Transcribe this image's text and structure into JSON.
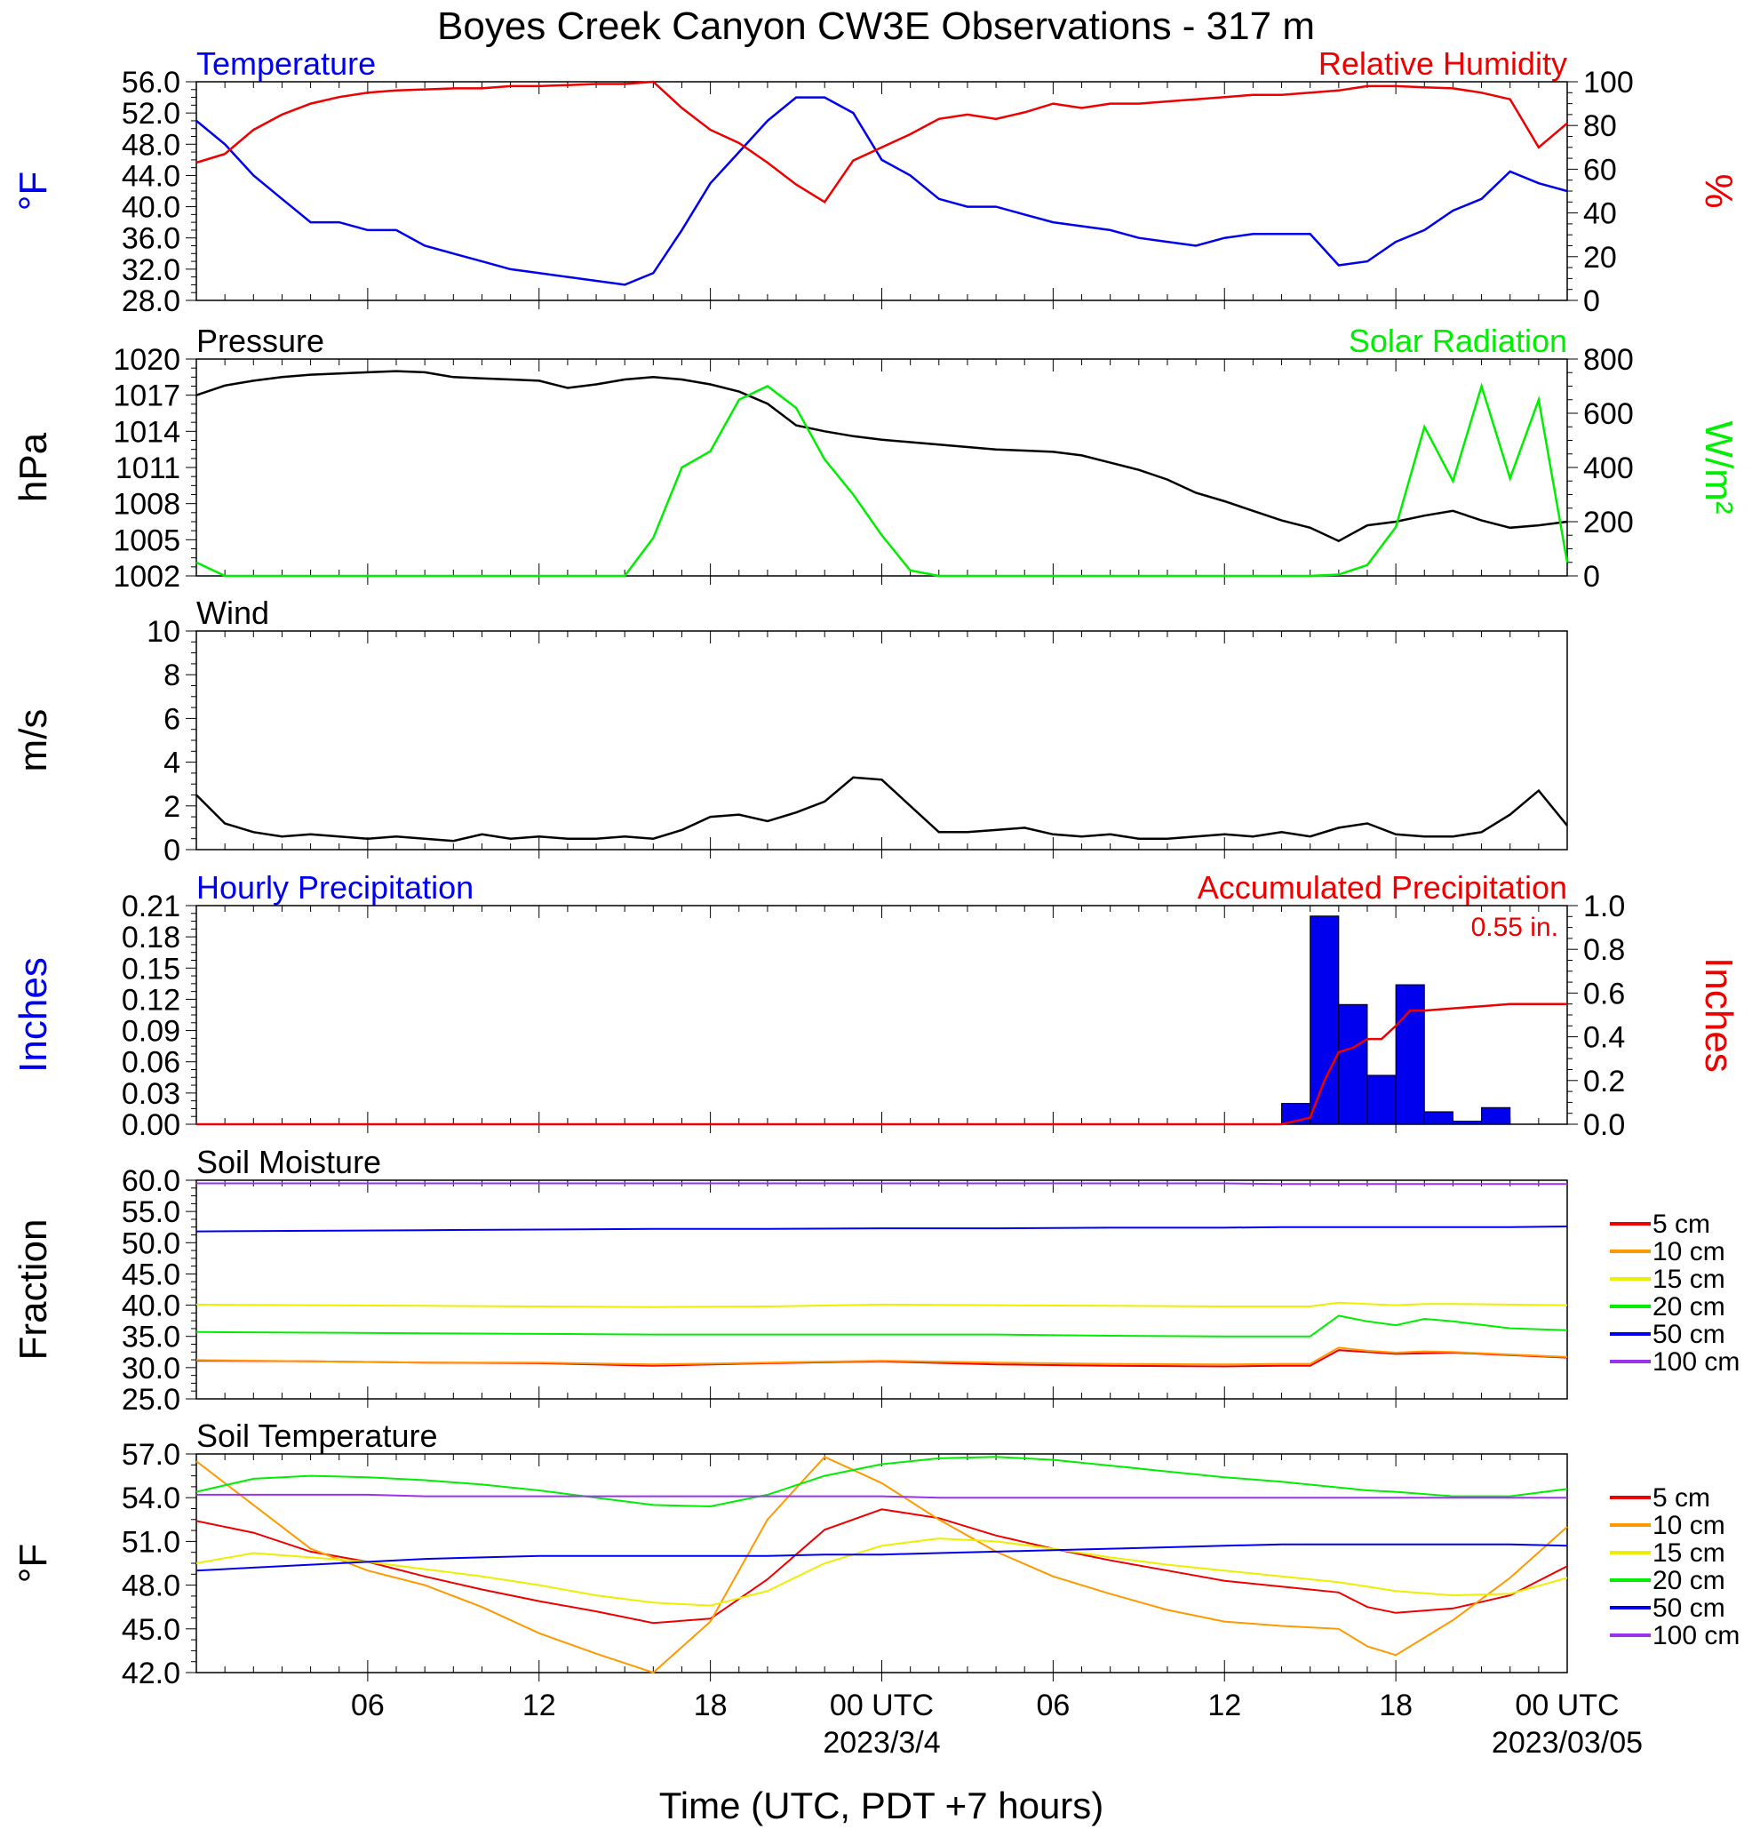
{
  "page": {
    "title": "Boyes Creek Canyon CW3E Observations - 317 m",
    "xlabel": "Time (UTC, PDT +7 hours)"
  },
  "colors": {
    "blue": "#0000ee",
    "red": "#ee0000",
    "green": "#00ee00",
    "black": "#000000",
    "orange": "#ff9900",
    "yellow": "#eeee00",
    "purple": "#9933ee"
  },
  "time_axis": {
    "tick_labels": [
      "06",
      "12",
      "18",
      "00 UTC",
      "06",
      "12",
      "18",
      "00 UTC"
    ],
    "date_labels": [
      "2023/3/4",
      "2023/03/05"
    ]
  },
  "soil_legend": [
    "5 cm",
    "10 cm",
    "15 cm",
    "20 cm",
    "50 cm",
    "100 cm"
  ],
  "chart_data": [
    {
      "panel": "temperature_rh",
      "type": "line",
      "title_left": "Temperature",
      "title_right": "Relative Humidity",
      "ylabel_left": "°F",
      "ylabel_right": "%",
      "ylim_left": [
        28,
        56
      ],
      "ylim_right": [
        0,
        100
      ],
      "yticks_left": [
        "56.0",
        "52.0",
        "48.0",
        "44.0",
        "40.0",
        "36.0",
        "32.0",
        "28.0"
      ],
      "yticks_right": [
        "100",
        "80",
        "60",
        "40",
        "20",
        "0"
      ],
      "x_hours": [
        0,
        1,
        2,
        3,
        4,
        5,
        6,
        7,
        8,
        9,
        10,
        11,
        12,
        13,
        14,
        15,
        16,
        17,
        18,
        19,
        20,
        21,
        22,
        23,
        24,
        25,
        26,
        27,
        28,
        29,
        30,
        31,
        32,
        33,
        34,
        35,
        36,
        37,
        38,
        39,
        40,
        41,
        42,
        43,
        44,
        45,
        46,
        47,
        48
      ],
      "series": [
        {
          "name": "Temperature",
          "axis": "left",
          "color": "blue",
          "values": [
            51,
            48,
            44,
            41,
            38,
            38,
            37,
            37,
            35,
            34,
            33,
            32,
            31.5,
            31,
            30.5,
            30,
            31.5,
            37,
            43,
            47,
            51,
            54,
            54,
            52,
            46,
            44,
            41,
            40,
            40,
            39,
            38,
            37.5,
            37,
            36,
            35.5,
            35,
            36,
            36.5,
            36.5,
            36.5,
            32.5,
            33,
            35.5,
            37,
            39.5,
            41,
            44.5,
            43,
            42
          ]
        },
        {
          "name": "Relative Humidity",
          "axis": "right",
          "color": "red",
          "values": [
            63,
            67,
            78,
            85,
            90,
            93,
            95,
            96,
            96.5,
            97,
            97,
            98,
            98,
            98.5,
            99,
            99,
            100,
            88,
            78,
            72,
            63,
            53,
            45,
            64,
            70,
            76,
            83,
            85,
            83,
            86,
            90,
            88,
            90,
            90,
            91,
            92,
            93,
            94,
            94,
            95,
            96,
            98,
            98,
            97.5,
            97,
            95,
            92,
            70,
            81
          ]
        }
      ]
    },
    {
      "panel": "pressure_solar",
      "type": "line",
      "title_left": "Pressure",
      "title_right": "Solar Radiation",
      "ylabel_left": "hPa",
      "ylabel_right": "W/m²",
      "ylim_left": [
        1002,
        1020
      ],
      "ylim_right": [
        0,
        800
      ],
      "yticks_left": [
        "1020",
        "1017",
        "1014",
        "1011",
        "1008",
        "1005",
        "1002"
      ],
      "yticks_right": [
        "800",
        "600",
        "400",
        "200",
        "0"
      ],
      "x_hours": [
        0,
        1,
        2,
        3,
        4,
        5,
        6,
        7,
        8,
        9,
        10,
        11,
        12,
        13,
        14,
        15,
        16,
        17,
        18,
        19,
        20,
        21,
        22,
        23,
        24,
        25,
        26,
        27,
        28,
        29,
        30,
        31,
        32,
        33,
        34,
        35,
        36,
        37,
        38,
        39,
        40,
        41,
        42,
        43,
        44,
        45,
        46,
        47,
        48
      ],
      "series": [
        {
          "name": "Pressure",
          "axis": "left",
          "color": "black",
          "values": [
            1017,
            1017.8,
            1018.2,
            1018.5,
            1018.7,
            1018.8,
            1018.9,
            1019,
            1018.9,
            1018.5,
            1018.4,
            1018.3,
            1018.2,
            1017.6,
            1017.9,
            1018.3,
            1018.5,
            1018.3,
            1017.9,
            1017.3,
            1016.3,
            1014.5,
            1014,
            1013.6,
            1013.3,
            1013.1,
            1012.9,
            1012.7,
            1012.5,
            1012.4,
            1012.3,
            1012,
            1011.4,
            1010.8,
            1010,
            1008.9,
            1008.2,
            1007.4,
            1006.6,
            1006,
            1004.9,
            1006.2,
            1006.5,
            1007,
            1007.4,
            1006.6,
            1006,
            1006.2,
            1006.5
          ]
        },
        {
          "name": "Solar Radiation",
          "axis": "right",
          "color": "green",
          "values": [
            50,
            0,
            0,
            0,
            0,
            0,
            0,
            0,
            0,
            0,
            0,
            0,
            0,
            0,
            0,
            0,
            140,
            400,
            460,
            650,
            700,
            620,
            430,
            300,
            150,
            20,
            0,
            0,
            0,
            0,
            0,
            0,
            0,
            0,
            0,
            0,
            0,
            0,
            0,
            0,
            5,
            40,
            180,
            550,
            350,
            700,
            360,
            650,
            50
          ]
        }
      ]
    },
    {
      "panel": "wind",
      "type": "line",
      "title_left": "Wind",
      "ylabel_left": "m/s",
      "ylim_left": [
        0,
        10
      ],
      "yticks_left": [
        "10",
        "8",
        "6",
        "4",
        "2",
        "0"
      ],
      "x_hours": [
        0,
        1,
        2,
        3,
        4,
        5,
        6,
        7,
        8,
        9,
        10,
        11,
        12,
        13,
        14,
        15,
        16,
        17,
        18,
        19,
        20,
        21,
        22,
        23,
        24,
        25,
        26,
        27,
        28,
        29,
        30,
        31,
        32,
        33,
        34,
        35,
        36,
        37,
        38,
        39,
        40,
        41,
        42,
        43,
        44,
        45,
        46,
        47,
        48
      ],
      "series": [
        {
          "name": "Wind speed",
          "axis": "left",
          "color": "black",
          "values": [
            2.5,
            1.2,
            0.8,
            0.6,
            0.7,
            0.6,
            0.5,
            0.6,
            0.5,
            0.4,
            0.7,
            0.5,
            0.6,
            0.5,
            0.5,
            0.6,
            0.5,
            0.9,
            1.5,
            1.6,
            1.3,
            1.7,
            2.2,
            3.3,
            3.2,
            2.0,
            0.8,
            0.8,
            0.9,
            1.0,
            0.7,
            0.6,
            0.7,
            0.5,
            0.5,
            0.6,
            0.7,
            0.6,
            0.8,
            0.6,
            1.0,
            1.2,
            0.7,
            0.6,
            0.6,
            0.8,
            1.6,
            2.7,
            1.1
          ]
        }
      ]
    },
    {
      "panel": "precipitation",
      "type": "bar",
      "title_left": "Hourly Precipitation",
      "title_right": "Accumulated Precipitation",
      "annotation": "0.55 in.",
      "ylabel_left": "Inches",
      "ylabel_right": "Inches",
      "ylim_left": [
        0,
        0.21
      ],
      "ylim_right": [
        0,
        1.0
      ],
      "yticks_left": [
        "0.21",
        "0.18",
        "0.15",
        "0.12",
        "0.09",
        "0.06",
        "0.03",
        "0.00"
      ],
      "yticks_right": [
        "1.0",
        "0.8",
        "0.6",
        "0.4",
        "0.2",
        "0.0"
      ],
      "bar_hours": [
        38,
        39,
        40,
        41,
        42,
        43,
        44,
        45
      ],
      "bar_values": [
        0.02,
        0.2,
        0.115,
        0.047,
        0.134,
        0.012,
        0.003,
        0.016
      ],
      "accumulated_x": [
        0,
        38,
        39,
        39.5,
        40,
        40.5,
        41,
        41.5,
        42,
        42.5,
        43,
        44,
        45,
        46,
        48
      ],
      "accumulated": [
        0,
        0,
        0.03,
        0.2,
        0.33,
        0.35,
        0.39,
        0.39,
        0.45,
        0.52,
        0.52,
        0.53,
        0.54,
        0.55,
        0.55
      ]
    },
    {
      "panel": "soil_moisture",
      "type": "line",
      "title_left": "Soil Moisture",
      "ylabel_left": "Fraction",
      "ylim_left": [
        25,
        60
      ],
      "yticks_left": [
        "60.0",
        "55.0",
        "50.0",
        "45.0",
        "40.0",
        "35.0",
        "30.0",
        "25.0"
      ],
      "x_hours": [
        0,
        4,
        8,
        12,
        16,
        20,
        24,
        28,
        32,
        36,
        38,
        39,
        40,
        41,
        42,
        43,
        44,
        46,
        48
      ],
      "series": [
        {
          "name": "5 cm",
          "color": "red",
          "values": [
            31.1,
            31.0,
            30.8,
            30.7,
            30.3,
            30.7,
            31.0,
            30.5,
            30.3,
            30.2,
            30.3,
            30.3,
            32.8,
            32.5,
            32.2,
            32.3,
            32.4,
            32.0,
            31.6
          ]
        },
        {
          "name": "10 cm",
          "color": "orange",
          "values": [
            31.2,
            31.0,
            30.8,
            30.8,
            30.5,
            30.8,
            31.1,
            30.8,
            30.6,
            30.5,
            30.6,
            30.6,
            33.2,
            32.7,
            32.4,
            32.6,
            32.5,
            32.1,
            31.7
          ]
        },
        {
          "name": "15 cm",
          "color": "yellow",
          "values": [
            40.1,
            40.0,
            39.9,
            39.8,
            39.7,
            39.8,
            40.1,
            40.0,
            39.9,
            39.8,
            39.8,
            39.8,
            40.4,
            40.2,
            40.0,
            40.2,
            40.2,
            40.1,
            40.0
          ]
        },
        {
          "name": "20 cm",
          "color": "green",
          "values": [
            35.7,
            35.6,
            35.5,
            35.4,
            35.3,
            35.3,
            35.3,
            35.3,
            35.1,
            35.0,
            35.0,
            35.0,
            38.3,
            37.4,
            36.8,
            37.8,
            37.4,
            36.3,
            36.0
          ]
        },
        {
          "name": "50 cm",
          "color": "blue",
          "values": [
            51.8,
            51.9,
            52.0,
            52.1,
            52.2,
            52.2,
            52.3,
            52.3,
            52.4,
            52.4,
            52.5,
            52.5,
            52.5,
            52.5,
            52.5,
            52.5,
            52.5,
            52.5,
            52.6
          ]
        },
        {
          "name": "100 cm",
          "color": "purple",
          "values": [
            59.5,
            59.5,
            59.5,
            59.5,
            59.5,
            59.5,
            59.5,
            59.5,
            59.5,
            59.5,
            59.4,
            59.4,
            59.4,
            59.4,
            59.4,
            59.4,
            59.4,
            59.4,
            59.4
          ]
        }
      ]
    },
    {
      "panel": "soil_temperature",
      "type": "line",
      "title_left": "Soil Temperature",
      "ylabel_left": "°F",
      "ylim_left": [
        42,
        57
      ],
      "yticks_left": [
        "57.0",
        "54.0",
        "51.0",
        "48.0",
        "45.0",
        "42.0"
      ],
      "x_hours": [
        0,
        2,
        4,
        6,
        8,
        10,
        12,
        14,
        16,
        18,
        20,
        22,
        24,
        26,
        28,
        30,
        32,
        34,
        36,
        38,
        40,
        41,
        42,
        44,
        46,
        48
      ],
      "series": [
        {
          "name": "5 cm",
          "color": "red",
          "values": [
            52.4,
            51.6,
            50.3,
            49.6,
            48.6,
            47.7,
            46.9,
            46.2,
            45.4,
            45.7,
            48.4,
            51.8,
            53.2,
            52.6,
            51.4,
            50.5,
            49.7,
            49.0,
            48.3,
            47.9,
            47.5,
            46.5,
            46.1,
            46.4,
            47.3,
            49.3
          ]
        },
        {
          "name": "10 cm",
          "color": "orange",
          "values": [
            56.5,
            53.5,
            50.5,
            49.0,
            48.0,
            46.5,
            44.7,
            43.3,
            42.0,
            45.5,
            52.5,
            56.8,
            55.0,
            52.5,
            50.3,
            48.6,
            47.4,
            46.3,
            45.5,
            45.2,
            45.0,
            43.8,
            43.2,
            45.6,
            48.5,
            52.0
          ]
        },
        {
          "name": "15 cm",
          "color": "yellow",
          "values": [
            49.5,
            50.2,
            49.9,
            49.6,
            49.1,
            48.6,
            48.0,
            47.3,
            46.8,
            46.6,
            47.6,
            49.5,
            50.7,
            51.2,
            51.0,
            50.5,
            49.9,
            49.4,
            49.0,
            48.6,
            48.2,
            47.9,
            47.6,
            47.3,
            47.4,
            48.5
          ]
        },
        {
          "name": "20 cm",
          "color": "green",
          "values": [
            54.4,
            55.3,
            55.5,
            55.4,
            55.2,
            54.9,
            54.5,
            54.0,
            53.5,
            53.4,
            54.2,
            55.5,
            56.3,
            56.7,
            56.8,
            56.6,
            56.2,
            55.8,
            55.4,
            55.1,
            54.7,
            54.5,
            54.4,
            54.1,
            54.1,
            54.6
          ]
        },
        {
          "name": "50 cm",
          "color": "blue",
          "values": [
            49.0,
            49.2,
            49.4,
            49.6,
            49.8,
            49.9,
            50.0,
            50.0,
            50.0,
            50.0,
            50.0,
            50.1,
            50.1,
            50.2,
            50.3,
            50.4,
            50.5,
            50.6,
            50.7,
            50.8,
            50.8,
            50.8,
            50.8,
            50.8,
            50.8,
            50.7
          ]
        },
        {
          "name": "100 cm",
          "color": "purple",
          "values": [
            54.2,
            54.2,
            54.2,
            54.2,
            54.1,
            54.1,
            54.1,
            54.1,
            54.1,
            54.1,
            54.1,
            54.1,
            54.1,
            54.0,
            54.0,
            54.0,
            54.0,
            54.0,
            54.0,
            54.0,
            54.0,
            54.0,
            54.0,
            54.0,
            54.0,
            54.0
          ]
        }
      ]
    }
  ]
}
